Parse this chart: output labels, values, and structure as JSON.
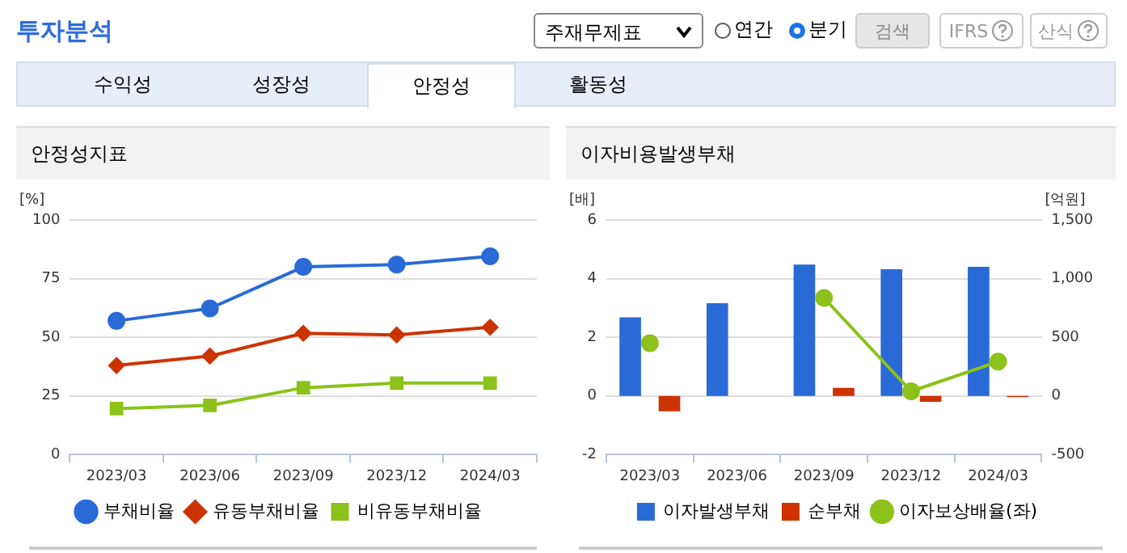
{
  "chart_data": [
    {
      "type": "other",
      "title": "투자분석",
      "annotations": [
        "주재무제표",
        "연간",
        "분기",
        "검색",
        "IFRS",
        "산식",
        "수익성",
        "성장성",
        "안정성",
        "활동성"
      ]
    },
    {
      "type": "line",
      "title": "안정성지표",
      "ylabel": "[%]",
      "categories": [
        "2023/03",
        "2023/06",
        "2023/09",
        "2023/12",
        "2024/03"
      ],
      "ylim": [
        0,
        100
      ],
      "yticks": [
        0,
        25,
        50,
        75,
        100
      ],
      "grid": "y",
      "legend": "bottom",
      "series": [
        {
          "name": "부채비율",
          "color": "#2a6ad6",
          "marker": "circle",
          "values": [
            57,
            62.3,
            80,
            81,
            84.5
          ]
        },
        {
          "name": "유동부채비율",
          "color": "#cc3300",
          "marker": "diamond",
          "values": [
            38,
            42,
            51.7,
            51,
            54.3
          ]
        },
        {
          "name": "비유동부채비율",
          "color": "#8cc21a",
          "marker": "square",
          "values": [
            19.6,
            21,
            28.5,
            30.5,
            30.5
          ]
        }
      ]
    },
    {
      "type": "bar",
      "title": "이자비용발생부채",
      "ylabel": "[배]",
      "y2label": "[억원]",
      "categories": [
        "2023/03",
        "2023/06",
        "2023/09",
        "2023/12",
        "2024/03"
      ],
      "ylim": [
        -2,
        6
      ],
      "yticks": [
        -2,
        0,
        2,
        4,
        6
      ],
      "y2lim": [
        -500,
        1500
      ],
      "y2ticks": [
        -500,
        0,
        500,
        {
          "value": 1000,
          "label": "1,000"
        },
        {
          "value": 1500,
          "label": "1,500"
        }
      ],
      "grid": "y",
      "legend": "bottom",
      "series": [
        {
          "name": "이자발생부채",
          "color": "#2a6ad6",
          "axis": "y2",
          "values": [
            670,
            790,
            1120,
            1080,
            1100
          ]
        },
        {
          "name": "순부채",
          "color": "#cc3300",
          "axis": "y2",
          "values": [
            -130,
            null,
            70,
            -50,
            -10
          ]
        },
        {
          "name": "이자보상배율(좌)",
          "type": "line",
          "color": "#8cc21a",
          "axis": "y",
          "marker": "circle",
          "values": [
            1.8,
            null,
            3.34,
            0.16,
            1.17
          ]
        }
      ]
    }
  ]
}
